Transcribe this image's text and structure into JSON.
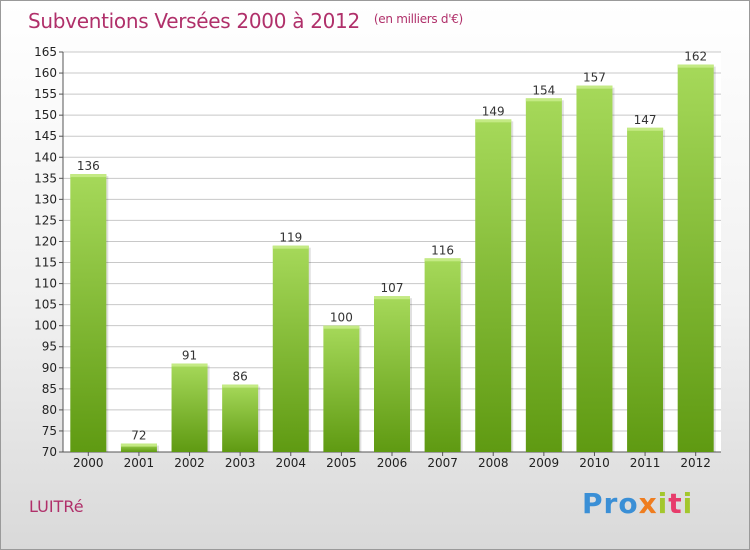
{
  "header": {
    "title": "Subventions Versées 2000 à 2012",
    "unit": "(en milliers d'€)"
  },
  "footer": {
    "commune": "LUITRé",
    "logo_text": "Proxiti"
  },
  "colors": {
    "title": "#b0306a",
    "bar_top": "#a6d95a",
    "bar_bottom": "#5f9a12",
    "grid": "#c8c8c8"
  },
  "chart_data": {
    "type": "bar",
    "categories": [
      "2000",
      "2001",
      "2002",
      "2003",
      "2004",
      "2005",
      "2006",
      "2007",
      "2008",
      "2009",
      "2010",
      "2011",
      "2012"
    ],
    "values": [
      136,
      72,
      91,
      86,
      119,
      100,
      107,
      116,
      149,
      154,
      157,
      147,
      162
    ],
    "ylim": [
      70,
      165
    ],
    "yticks": [
      70,
      75,
      80,
      85,
      90,
      95,
      100,
      105,
      110,
      115,
      120,
      125,
      130,
      135,
      140,
      145,
      150,
      155,
      160,
      165
    ],
    "grid": true,
    "data_labels": true
  }
}
